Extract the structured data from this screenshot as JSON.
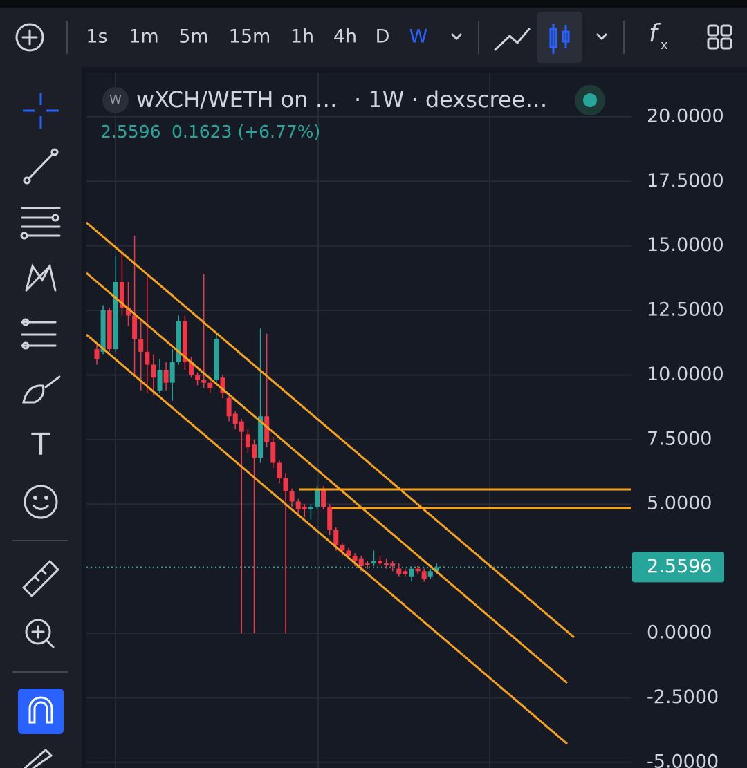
{
  "toolbar": {
    "intervals": [
      "1s",
      "1m",
      "5m",
      "15m",
      "1h",
      "4h",
      "D",
      "W"
    ],
    "active": "W"
  },
  "chart_data": {
    "type": "candlestick",
    "title": "wXCH/WETH on …",
    "subtitle": "· 1W · dexscree…",
    "symbol_icon": "W",
    "price": 2.5596,
    "change": "0.1623 (+6.77%)",
    "open": [
      11.0,
      10.9,
      12.5,
      11.0,
      13.6,
      12.6,
      12.3,
      11.4,
      10.9,
      10.4,
      9.4,
      10.2,
      9.7,
      10.5,
      12.1,
      10.5,
      10.0,
      9.8,
      9.7,
      9.8,
      9.9,
      9.1,
      8.5,
      8.2,
      7.7,
      7.3,
      6.8,
      8.4,
      7.4,
      6.6,
      6.0,
      5.5,
      5.1,
      4.9,
      4.8,
      4.9,
      5.6,
      4.9,
      4.0,
      3.4,
      3.2,
      3.0,
      2.9,
      2.7,
      2.7,
      2.8,
      2.7,
      2.7,
      2.5,
      2.4,
      2.2,
      2.5,
      2.4,
      2.2,
      2.4
    ],
    "high": [
      11.2,
      12.7,
      12.6,
      14.6,
      14.8,
      13.6,
      15.4,
      12.1,
      13.8,
      10.8,
      10.6,
      10.5,
      11.0,
      12.3,
      12.3,
      10.7,
      10.1,
      13.9,
      9.8,
      11.6,
      10.0,
      9.2,
      8.6,
      8.3,
      7.9,
      7.5,
      11.8,
      11.6,
      7.6,
      6.7,
      6.2,
      5.6,
      5.2,
      5.0,
      5.0,
      5.7,
      5.7,
      5.0,
      4.1,
      3.5,
      3.3,
      3.1,
      3.0,
      2.8,
      3.2,
      3.0,
      2.9,
      2.8,
      2.7,
      2.5,
      2.6,
      2.6,
      2.5,
      2.5,
      2.7
    ],
    "low": [
      10.4,
      10.8,
      10.9,
      10.9,
      12.3,
      11.9,
      10.0,
      9.4,
      9.3,
      9.2,
      9.3,
      9.4,
      9.0,
      10.4,
      10.2,
      9.9,
      9.6,
      9.5,
      9.3,
      9.7,
      9.1,
      8.2,
      7.9,
      0.0,
      7.0,
      0.0,
      6.6,
      7.2,
      6.4,
      5.8,
      0.0,
      4.9,
      4.6,
      4.5,
      4.4,
      4.8,
      4.8,
      3.8,
      3.2,
      3.0,
      2.9,
      2.6,
      2.4,
      2.5,
      2.6,
      2.6,
      2.5,
      2.4,
      2.2,
      2.2,
      2.0,
      2.3,
      2.0,
      2.1,
      2.3
    ],
    "close": [
      10.6,
      12.5,
      11.0,
      13.6,
      12.6,
      12.3,
      11.4,
      10.9,
      10.4,
      9.9,
      10.2,
      9.7,
      10.5,
      12.1,
      10.5,
      10.0,
      9.8,
      9.7,
      9.5,
      11.4,
      9.3,
      8.4,
      8.1,
      7.8,
      7.2,
      6.8,
      8.4,
      7.4,
      6.6,
      6.0,
      5.5,
      5.1,
      4.8,
      4.8,
      4.9,
      5.6,
      4.9,
      4.0,
      3.4,
      3.2,
      3.0,
      2.8,
      2.6,
      2.65,
      2.8,
      2.7,
      2.65,
      2.6,
      2.3,
      2.3,
      2.5,
      2.4,
      2.1,
      2.4,
      2.5596
    ],
    "ylim": [
      -5.22,
      21.71
    ],
    "yticks": [
      {
        "value": 20,
        "label": "20.0000"
      },
      {
        "value": 17.5,
        "label": "17.5000"
      },
      {
        "value": 15,
        "label": "15.0000"
      },
      {
        "value": 12.5,
        "label": "12.5000"
      },
      {
        "value": 10,
        "label": "10.0000"
      },
      {
        "value": 7.5,
        "label": "7.5000"
      },
      {
        "value": 5,
        "label": "5.0000"
      },
      {
        "value": 0,
        "label": "0.0000"
      },
      {
        "value": -2.5,
        "label": "-2.5000"
      },
      {
        "value": -5,
        "label": "-5.0000"
      }
    ],
    "up_color": "#26a69a",
    "down_color": "#f23645",
    "grid": true
  }
}
